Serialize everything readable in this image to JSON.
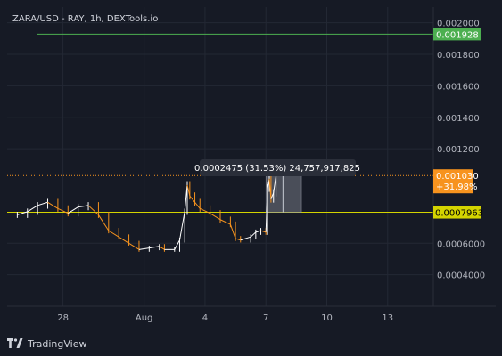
{
  "chart_title": "ZARA/USD - RAY, 1h, DEXTools.io",
  "brand": "TradingView",
  "colors": {
    "background": "#161a25",
    "grid": "#232834",
    "axis_text": "#b2b5be",
    "candle_up": "#ffffff",
    "candle_down": "#f7931e",
    "target_line": "#4caf50",
    "current_line": "#f7931e",
    "support_line": "#d4d400",
    "measure_box": "#8a8f99"
  },
  "chart_data": {
    "type": "candlestick",
    "x_tick_labels": [
      "28",
      "Aug",
      "4",
      "7",
      "10",
      "13"
    ],
    "y_tick_labels": [
      "0.002000",
      "0.001800",
      "0.001600",
      "0.001400",
      "0.001200",
      "0.0006000",
      "0.0004000"
    ],
    "ylim": [
      0.0002,
      0.0021
    ],
    "horizontal_lines": [
      {
        "label": "0.001928",
        "value": 0.001928,
        "color": "#4caf50"
      },
      {
        "label": "0.0007963",
        "value": 0.0007963,
        "color": "#d4d400"
      }
    ],
    "current_price": {
      "label": "0.001030",
      "change_label": "+31.98%",
      "value": 0.00103
    },
    "measure_tooltip": "0.0002475 (31.53%) 24,757,917,825",
    "price_series": [
      {
        "date": "2023-07-25 18:00",
        "value": 0.00078
      },
      {
        "date": "2023-07-26 06:00",
        "value": 0.0008
      },
      {
        "date": "2023-07-26 18:00",
        "value": 0.00084
      },
      {
        "date": "2023-07-27 06:00",
        "value": 0.00086
      },
      {
        "date": "2023-07-27 18:00",
        "value": 0.00082
      },
      {
        "date": "2023-07-28 06:00",
        "value": 0.00079
      },
      {
        "date": "2023-07-28 18:00",
        "value": 0.00083
      },
      {
        "date": "2023-07-29 06:00",
        "value": 0.00084
      },
      {
        "date": "2023-07-29 18:00",
        "value": 0.00078
      },
      {
        "date": "2023-07-30 06:00",
        "value": 0.00068
      },
      {
        "date": "2023-07-30 18:00",
        "value": 0.00064
      },
      {
        "date": "2023-07-31 06:00",
        "value": 0.0006
      },
      {
        "date": "2023-07-31 18:00",
        "value": 0.00056
      },
      {
        "date": "2023-08-01 06:00",
        "value": 0.00057
      },
      {
        "date": "2023-08-01 18:00",
        "value": 0.00058
      },
      {
        "date": "2023-08-02 00:00",
        "value": 0.00056
      },
      {
        "date": "2023-08-02 12:00",
        "value": 0.00056
      },
      {
        "date": "2023-08-02 18:00",
        "value": 0.00062
      },
      {
        "date": "2023-08-03 00:00",
        "value": 0.0008
      },
      {
        "date": "2023-08-03 03:00",
        "value": 0.00097
      },
      {
        "date": "2023-08-03 06:00",
        "value": 0.0009
      },
      {
        "date": "2023-08-03 12:00",
        "value": 0.00086
      },
      {
        "date": "2023-08-03 18:00",
        "value": 0.00082
      },
      {
        "date": "2023-08-04 06:00",
        "value": 0.00079
      },
      {
        "date": "2023-08-04 18:00",
        "value": 0.00075
      },
      {
        "date": "2023-08-05 06:00",
        "value": 0.00072
      },
      {
        "date": "2023-08-05 12:00",
        "value": 0.00063
      },
      {
        "date": "2023-08-05 18:00",
        "value": 0.00062
      },
      {
        "date": "2023-08-06 06:00",
        "value": 0.00064
      },
      {
        "date": "2023-08-06 12:00",
        "value": 0.00067
      },
      {
        "date": "2023-08-06 18:00",
        "value": 0.00068
      },
      {
        "date": "2023-08-07 00:00",
        "value": 0.00067
      },
      {
        "date": "2023-08-07 02:00",
        "value": 0.00095
      },
      {
        "date": "2023-08-07 04:00",
        "value": 0.00101
      },
      {
        "date": "2023-08-07 06:00",
        "value": 0.00088
      },
      {
        "date": "2023-08-07 09:00",
        "value": 0.00092
      },
      {
        "date": "2023-08-07 12:00",
        "value": 0.00103
      }
    ]
  }
}
